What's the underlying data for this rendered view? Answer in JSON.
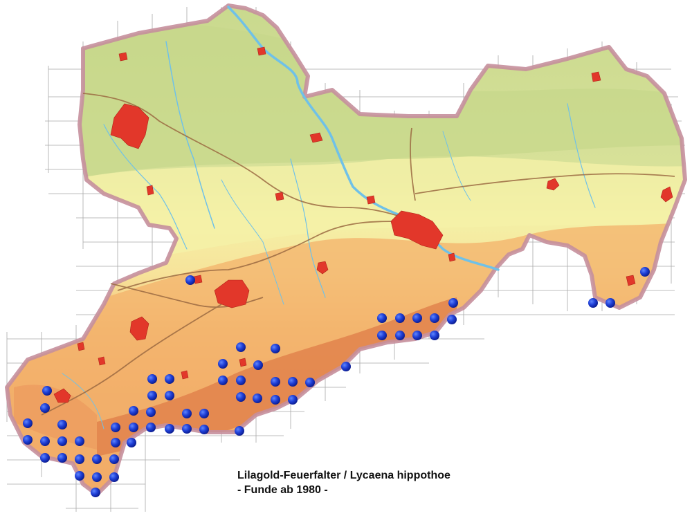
{
  "caption": {
    "title": "Lilagold-Feuerfalter / Lycaena hippothoe",
    "subtitle": "- Funde ab 1980 -"
  },
  "colors": {
    "lowland": "#c9d98e",
    "hills_yellow": "#f4f0a6",
    "uplands_orange": "#f3b469",
    "mountains": "#e2834a",
    "border": "#c58f9c",
    "rivers": "#6fc1e8",
    "cities": "#e2372a",
    "roads": "#9b6a42",
    "records": "#1a36c8",
    "grid": "#8a8a8a"
  },
  "legend_symbols": {
    "record_marker": "blue-dot"
  },
  "records_count": 72
}
